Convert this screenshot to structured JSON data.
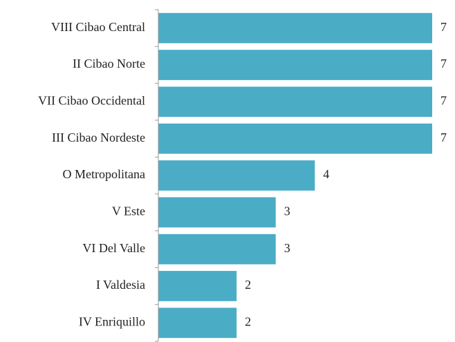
{
  "chart_data": {
    "type": "bar",
    "orientation": "horizontal",
    "categories": [
      "VIII Cibao Central",
      "II Cibao Norte",
      "VII Cibao Occidental",
      "III Cibao Nordeste",
      "O Metropolitana",
      "V Este",
      "VI Del Valle",
      "I Valdesia",
      "IV Enriquillo"
    ],
    "values": [
      7,
      7,
      7,
      7,
      4,
      3,
      3,
      2,
      2
    ],
    "color": "#4bacc6"
  }
}
